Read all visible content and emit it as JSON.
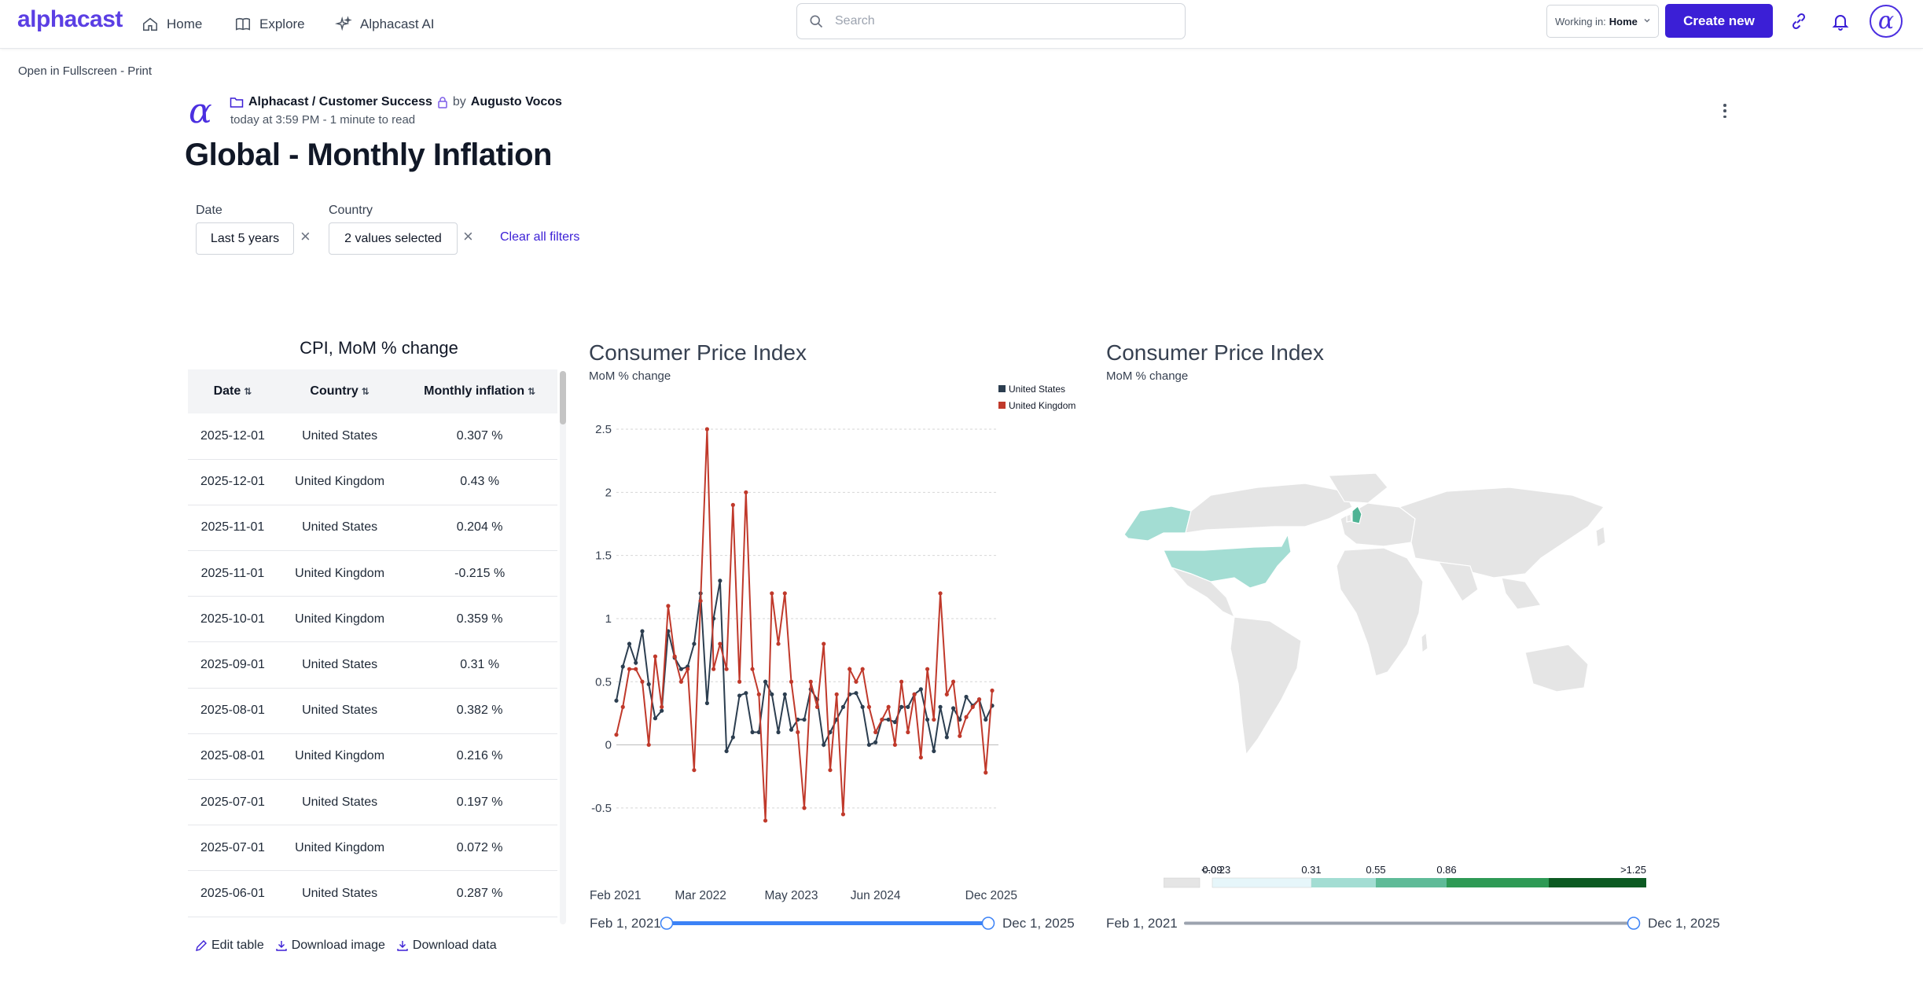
{
  "nav": {
    "logo": "alphacast",
    "home": "Home",
    "explore": "Explore",
    "ai": "Alphacast AI",
    "search_placeholder": "Search",
    "working_in_label": "Working in:",
    "working_in_value": "Home",
    "create_new": "Create new"
  },
  "open_fullscreen": "Open in Fullscreen - Print",
  "article": {
    "path": "Alphacast / Customer Success",
    "by": "by",
    "author": "Augusto Vocos",
    "meta": "today at 3:59 PM - 1 minute to read",
    "title": "Global - Monthly Inflation"
  },
  "filters": {
    "date_label": "Date",
    "date_value": "Last 5 years",
    "country_label": "Country",
    "country_value": "2 values selected",
    "clear_all": "Clear all filters"
  },
  "table": {
    "title": "CPI, MoM % change",
    "columns": [
      "Date",
      "Country",
      "Monthly inflation"
    ],
    "rows": [
      [
        "2025-12-01",
        "United States",
        "0.307 %"
      ],
      [
        "2025-12-01",
        "United Kingdom",
        "0.43 %"
      ],
      [
        "2025-11-01",
        "United States",
        "0.204 %"
      ],
      [
        "2025-11-01",
        "United Kingdom",
        "-0.215 %"
      ],
      [
        "2025-10-01",
        "United Kingdom",
        "0.359 %"
      ],
      [
        "2025-09-01",
        "United States",
        "0.31 %"
      ],
      [
        "2025-08-01",
        "United States",
        "0.382 %"
      ],
      [
        "2025-08-01",
        "United Kingdom",
        "0.216 %"
      ],
      [
        "2025-07-01",
        "United States",
        "0.197 %"
      ],
      [
        "2025-07-01",
        "United Kingdom",
        "0.072 %"
      ],
      [
        "2025-06-01",
        "United States",
        "0.287 %"
      ]
    ],
    "actions": {
      "edit": "Edit table",
      "download_image": "Download image",
      "download_data": "Download data"
    }
  },
  "line_chart": {
    "title": "Consumer Price Index",
    "subtitle": "MoM % change",
    "slider_start": "Feb 1, 2021",
    "slider_end": "Dec 1, 2025"
  },
  "map_chart": {
    "title": "Consumer Price Index",
    "subtitle": "MoM % change",
    "slider_start": "Feb 1, 2021",
    "slider_end": "Dec 1, 2025",
    "legend": [
      {
        "label": "<-0.23",
        "color": "#e5e5e5"
      },
      {
        "label": "0.09",
        "color": "#e6f6fa"
      },
      {
        "label": "0.31",
        "color": "#a3ddd3"
      },
      {
        "label": "0.55",
        "color": "#5fbb98"
      },
      {
        "label": "0.86",
        "color": "#2e9a55"
      },
      {
        "label": ">1.25",
        "color": "#0c5a22"
      }
    ],
    "country_colors": {
      "United States": "#a3ddd3",
      "United Kingdom": "#4fb394",
      "Alaska": "#a3ddd3",
      "other": "#e5e5e5"
    }
  },
  "chart_data": {
    "type": "line",
    "title": "Consumer Price Index",
    "subtitle": "MoM % change",
    "x_tick_labels": [
      "Feb 2021",
      "Mar 2022",
      "May 2023",
      "Jun 2024",
      "Dec 2025"
    ],
    "ylim": [
      -0.7,
      2.5
    ],
    "y_ticks": [
      2.5,
      2,
      1.5,
      1,
      0.5,
      0,
      -0.5
    ],
    "grid": true,
    "legend_position": "top-right",
    "x": [
      "2021-02",
      "2021-03",
      "2021-04",
      "2021-05",
      "2021-06",
      "2021-07",
      "2021-08",
      "2021-09",
      "2021-10",
      "2021-11",
      "2021-12",
      "2022-01",
      "2022-02",
      "2022-03",
      "2022-04",
      "2022-05",
      "2022-06",
      "2022-07",
      "2022-08",
      "2022-09",
      "2022-10",
      "2022-11",
      "2022-12",
      "2023-01",
      "2023-02",
      "2023-03",
      "2023-04",
      "2023-05",
      "2023-06",
      "2023-07",
      "2023-08",
      "2023-09",
      "2023-10",
      "2023-11",
      "2023-12",
      "2024-01",
      "2024-02",
      "2024-03",
      "2024-04",
      "2024-05",
      "2024-06",
      "2024-07",
      "2024-08",
      "2024-09",
      "2024-10",
      "2024-11",
      "2024-12",
      "2025-01",
      "2025-02",
      "2025-03",
      "2025-04",
      "2025-05",
      "2025-06",
      "2025-07",
      "2025-08",
      "2025-09",
      "2025-10",
      "2025-11",
      "2025-12"
    ],
    "series": [
      {
        "name": "United States",
        "color": "#2c3e50",
        "values": [
          0.35,
          0.62,
          0.8,
          0.65,
          0.9,
          0.48,
          0.21,
          0.27,
          0.9,
          0.69,
          0.6,
          0.62,
          0.8,
          1.2,
          0.33,
          1.0,
          1.3,
          -0.05,
          0.06,
          0.39,
          0.41,
          0.1,
          0.1,
          0.5,
          0.4,
          0.1,
          0.4,
          0.12,
          0.2,
          0.2,
          0.44,
          0.36,
          0.0,
          0.1,
          0.2,
          0.3,
          0.4,
          0.41,
          0.3,
          0.0,
          0.02,
          0.2,
          0.2,
          0.18,
          0.3,
          0.3,
          0.4,
          0.44,
          0.2,
          -0.05,
          0.3,
          0.06,
          0.29,
          0.2,
          0.38,
          0.31,
          0.36,
          0.2,
          0.31
        ]
      },
      {
        "name": "United Kingdom",
        "color": "#c0392b",
        "values": [
          0.08,
          0.3,
          0.6,
          0.6,
          0.5,
          0.0,
          0.7,
          0.3,
          1.1,
          0.7,
          0.5,
          0.6,
          -0.2,
          1.14,
          2.5,
          0.6,
          0.8,
          0.6,
          1.9,
          0.5,
          2.0,
          0.6,
          0.4,
          -0.6,
          1.2,
          0.8,
          1.2,
          0.5,
          0.1,
          -0.5,
          0.5,
          0.3,
          0.8,
          -0.2,
          0.4,
          -0.55,
          0.6,
          0.5,
          0.6,
          0.3,
          0.1,
          0.2,
          0.3,
          0.0,
          0.5,
          0.1,
          0.4,
          -0.1,
          0.6,
          0.2,
          1.2,
          0.4,
          0.5,
          0.07,
          0.22,
          0.3,
          0.36,
          -0.22,
          0.43
        ]
      }
    ]
  }
}
